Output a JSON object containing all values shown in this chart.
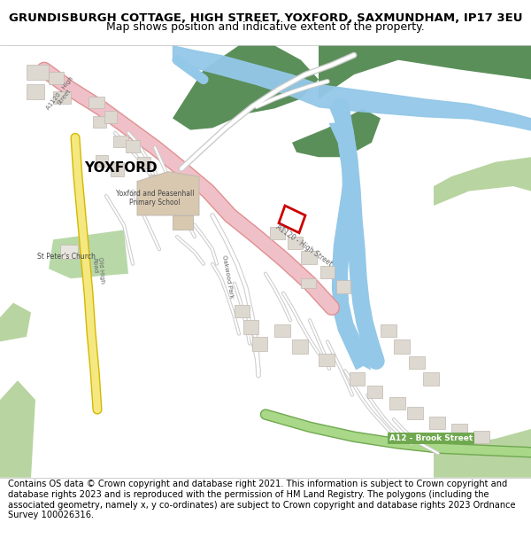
{
  "title": "GRUNDISBURGH COTTAGE, HIGH STREET, YOXFORD, SAXMUNDHAM, IP17 3EU",
  "subtitle": "Map shows position and indicative extent of the property.",
  "footer": "Contains OS data © Crown copyright and database right 2021. This information is subject to Crown copyright and database rights 2023 and is reproduced with the permission of HM Land Registry. The polygons (including the associated geometry, namely x, y co-ordinates) are subject to Crown copyright and database rights 2023 Ordnance Survey 100026316.",
  "bg": "#f7f5f2",
  "green_dark": "#5a8f5a",
  "green_light": "#b8d4a0",
  "water": "#94c8e8",
  "road_pink": "#f0c0c8",
  "road_pink_edge": "#e09090",
  "road_yellow": "#f5e880",
  "road_yellow_edge": "#d4b800",
  "road_green_fill": "#a8d888",
  "road_green_edge": "#70a850",
  "road_white": "#ffffff",
  "road_white_edge": "#cccccc",
  "building_fill": "#ddd8d0",
  "building_edge": "#c0b8b0",
  "school_fill": "#d8c8b0",
  "church_green": "#b8d8a8",
  "plot_red": "#cc0000",
  "label_dark": "#333333",
  "label_mid": "#666666"
}
